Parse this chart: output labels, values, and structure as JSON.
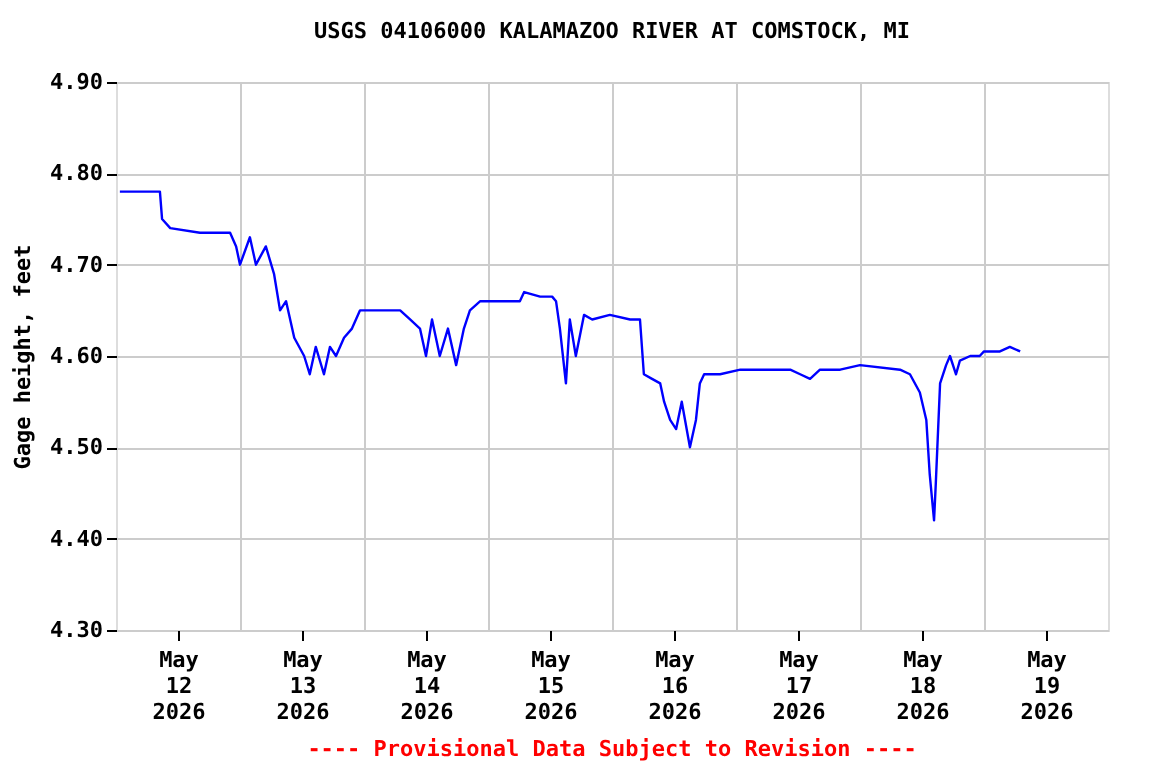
{
  "chart_data": {
    "type": "line",
    "title": "USGS 04106000 KALAMAZOO RIVER AT COMSTOCK, MI",
    "ylabel": "Gage height, feet",
    "annotations": [
      "---- Provisional Data Subject to Revision ----"
    ],
    "x": [
      "2026-05-12T00:45",
      "2026-05-12T08:30",
      "2026-05-12T08:55",
      "2026-05-12T10:30",
      "2026-05-12T16:15",
      "2026-05-12T22:05",
      "2026-05-12T23:15",
      "2026-05-13T00:00",
      "2026-05-13T01:55",
      "2026-05-13T03:05",
      "2026-05-13T05:00",
      "2026-05-13T06:35",
      "2026-05-13T07:45",
      "2026-05-13T08:55",
      "2026-05-13T10:30",
      "2026-05-13T12:25",
      "2026-05-13T13:30",
      "2026-05-13T14:40",
      "2026-05-13T16:15",
      "2026-05-13T17:25",
      "2026-05-13T18:35",
      "2026-05-13T20:08",
      "2026-05-13T21:40",
      "2026-05-13T23:14",
      "2026-05-14T01:10",
      "2026-05-14T07:00",
      "2026-05-14T08:55",
      "2026-05-14T10:50",
      "2026-05-14T12:00",
      "2026-05-14T13:10",
      "2026-05-14T14:40",
      "2026-05-14T16:15",
      "2026-05-14T17:50",
      "2026-05-14T19:20",
      "2026-05-14T20:30",
      "2026-05-14T22:30",
      "2026-05-15T06:10",
      "2026-05-15T07:00",
      "2026-05-15T10:05",
      "2026-05-15T12:25",
      "2026-05-15T13:10",
      "2026-05-15T13:55",
      "2026-05-15T15:05",
      "2026-05-15T15:50",
      "2026-05-15T17:00",
      "2026-05-15T18:35",
      "2026-05-15T20:10",
      "2026-05-15T23:35",
      "2026-05-16T03:30",
      "2026-05-16T05:25",
      "2026-05-16T06:10",
      "2026-05-16T07:45",
      "2026-05-16T09:20",
      "2026-05-16T10:05",
      "2026-05-16T11:15",
      "2026-05-16T12:25",
      "2026-05-16T13:30",
      "2026-05-16T15:05",
      "2026-05-16T16:15",
      "2026-05-16T17:00",
      "2026-05-16T17:50",
      "2026-05-16T20:55",
      "2026-05-17T00:50",
      "2026-05-17T04:40",
      "2026-05-17T10:30",
      "2026-05-17T12:25",
      "2026-05-17T14:20",
      "2026-05-17T16:15",
      "2026-05-17T20:10",
      "2026-05-18T00:00",
      "2026-05-18T07:45",
      "2026-05-18T09:40",
      "2026-05-18T11:35",
      "2026-05-18T12:50",
      "2026-05-18T13:30",
      "2026-05-18T14:20",
      "2026-05-18T14:40",
      "2026-05-18T15:30",
      "2026-05-18T16:40",
      "2026-05-18T17:25",
      "2026-05-18T18:35",
      "2026-05-18T19:20",
      "2026-05-18T21:20",
      "2026-05-18T23:10",
      "2026-05-19T00:00",
      "2026-05-19T03:05",
      "2026-05-19T05:00",
      "2026-05-19T07:00"
    ],
    "series": [
      {
        "color": "#0000ff",
        "values": [
          4.78,
          4.78,
          4.75,
          4.74,
          4.735,
          4.735,
          4.72,
          4.7,
          4.73,
          4.7,
          4.72,
          4.69,
          4.65,
          4.66,
          4.62,
          4.6,
          4.58,
          4.61,
          4.58,
          4.61,
          4.6,
          4.62,
          4.63,
          4.65,
          4.65,
          4.65,
          4.64,
          4.63,
          4.6,
          4.64,
          4.6,
          4.63,
          4.59,
          4.63,
          4.65,
          4.66,
          4.66,
          4.67,
          4.665,
          4.665,
          4.66,
          4.63,
          4.57,
          4.64,
          4.6,
          4.645,
          4.64,
          4.645,
          4.64,
          4.64,
          4.58,
          4.575,
          4.57,
          4.55,
          4.53,
          4.52,
          4.55,
          4.5,
          4.53,
          4.57,
          4.58,
          4.58,
          4.585,
          4.585,
          4.585,
          4.58,
          4.575,
          4.585,
          4.585,
          4.59,
          4.585,
          4.58,
          4.56,
          4.53,
          4.47,
          4.42,
          4.46,
          4.57,
          4.59,
          4.6,
          4.58,
          4.595,
          4.6,
          4.6,
          4.605,
          4.605,
          4.61,
          4.605
        ]
      }
    ],
    "xlim": [
      "2026-05-12T00:00",
      "2026-05-20T00:00"
    ],
    "xticks": [
      {
        "value": "2026-05-12T12:00",
        "label": "May 12 2026"
      },
      {
        "value": "2026-05-13T00:00",
        "label": null
      },
      {
        "value": "2026-05-13T12:00",
        "label": "May 13 2026"
      },
      {
        "value": "2026-05-14T00:00",
        "label": null
      },
      {
        "value": "2026-05-14T12:00",
        "label": "May 14 2026"
      },
      {
        "value": "2026-05-15T00:00",
        "label": null
      },
      {
        "value": "2026-05-15T12:00",
        "label": "May 15 2026"
      },
      {
        "value": "2026-05-16T00:00",
        "label": null
      },
      {
        "value": "2026-05-16T12:00",
        "label": "May 16 2026"
      },
      {
        "value": "2026-05-17T00:00",
        "label": null
      },
      {
        "value": "2026-05-17T12:00",
        "label": "May 17 2026"
      },
      {
        "value": "2026-05-18T00:00",
        "label": null
      },
      {
        "value": "2026-05-18T12:00",
        "label": "May 18 2026"
      },
      {
        "value": "2026-05-19T00:00",
        "label": null
      },
      {
        "value": "2026-05-19T12:00",
        "label": "May 19 2026"
      }
    ],
    "ylim": [
      4.3,
      4.9
    ],
    "yticks": [
      {
        "value": 4.3,
        "label": "4.30"
      },
      {
        "value": 4.4,
        "label": "4.40"
      },
      {
        "value": 4.5,
        "label": "4.50"
      },
      {
        "value": 4.6,
        "label": "4.60"
      },
      {
        "value": 4.7,
        "label": "4.70"
      },
      {
        "value": 4.8,
        "label": "4.80"
      },
      {
        "value": 4.9,
        "label": "4.90"
      }
    ],
    "grid": true,
    "legend": false,
    "marker": "none",
    "line_style": "solid"
  }
}
